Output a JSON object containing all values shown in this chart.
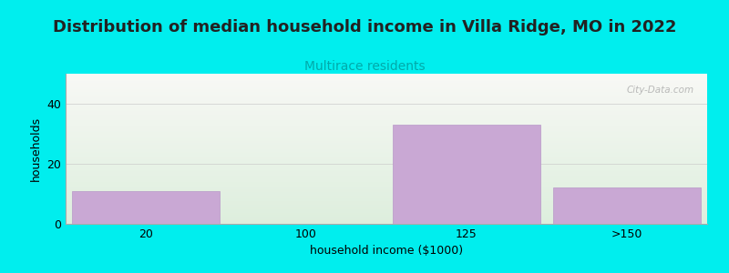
{
  "title": "Distribution of median household income in Villa Ridge, MO in 2022",
  "subtitle": "Multirace residents",
  "xlabel": "household income ($1000)",
  "ylabel": "households",
  "categories": [
    "20",
    "100",
    "125",
    ">150"
  ],
  "values": [
    11,
    0,
    33,
    12
  ],
  "bar_color": "#c9a8d4",
  "bar_edgecolor": "#b898c8",
  "background_color": "#00eeee",
  "plot_bg_color_top": "#f8f8f5",
  "plot_bg_color_bottom": "#ddeedd",
  "title_fontsize": 13,
  "subtitle_fontsize": 10,
  "subtitle_color": "#00aaaa",
  "axis_label_fontsize": 9,
  "tick_fontsize": 9,
  "ylim": [
    0,
    50
  ],
  "yticks": [
    0,
    20,
    40
  ],
  "watermark": "City-Data.com"
}
